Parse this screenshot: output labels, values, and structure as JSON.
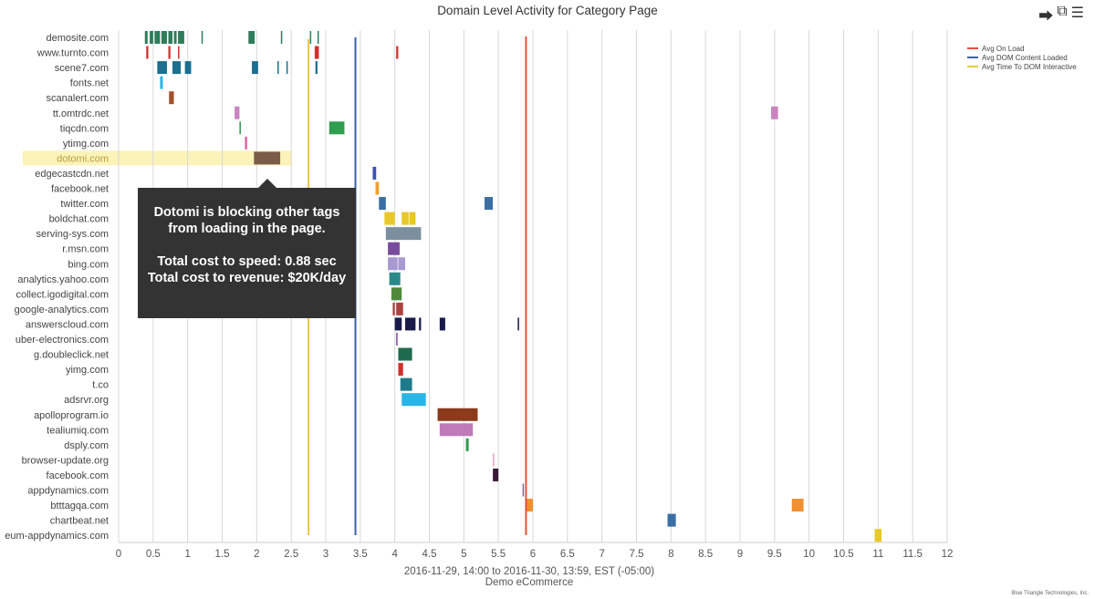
{
  "icons": [
    "share-icon",
    "external-link-icon",
    "menu-icon"
  ],
  "credit": "Blue Triangle Technologies, Inc.",
  "tooltip": {
    "message": "Dotomi is blocking other tags from loading in the page.",
    "speed": "Total cost to speed: 0.88 sec",
    "revenue": "Total cost to revenue: $20K/day"
  },
  "chart_data": {
    "type": "timeline",
    "title": "Domain Level Activity for Category Page",
    "xlabel": "2016-11-29, 14:00 to 2016-11-30, 13:59, EST (-05:00)",
    "xlabel2": "Demo eCommerce",
    "xlim": [
      0,
      12
    ],
    "xticks": [
      "0",
      "0.5",
      "1",
      "1.5",
      "2",
      "2.5",
      "3",
      "3.5",
      "4",
      "4.5",
      "5",
      "5.5",
      "6",
      "6.5",
      "7",
      "7.5",
      "8",
      "8.5",
      "9",
      "9.5",
      "10",
      "10.5",
      "11",
      "11.5",
      "12"
    ],
    "grid": true,
    "legend_position": "top-right",
    "highlight": "dotomi.com",
    "reference_lines": [
      {
        "name": "Avg On Load",
        "value": 5.9,
        "color": "#e0533a"
      },
      {
        "name": "Avg DOM Content Loaded",
        "value": 3.43,
        "color": "#3a5fb0"
      },
      {
        "name": "Avg Time To DOM Interactive",
        "value": 2.75,
        "color": "#e6c84a"
      }
    ],
    "domains": [
      {
        "name": "demosite.com",
        "color": "#2e7d5b",
        "segments": [
          [
            0.38,
            0.42
          ],
          [
            0.45,
            0.5
          ],
          [
            0.52,
            0.6
          ],
          [
            0.62,
            0.7
          ],
          [
            0.72,
            0.78
          ],
          [
            0.8,
            0.84
          ],
          [
            0.86,
            0.95
          ],
          [
            1.2,
            1.22
          ],
          [
            1.88,
            1.97
          ],
          [
            2.35,
            2.37
          ],
          [
            2.77,
            2.79
          ],
          [
            2.88,
            2.9
          ]
        ]
      },
      {
        "name": "www.turnto.com",
        "color": "#d32f2f",
        "segments": [
          [
            0.4,
            0.43
          ],
          [
            0.72,
            0.75
          ],
          [
            0.86,
            0.88
          ],
          [
            2.84,
            2.9
          ],
          [
            4.02,
            4.05
          ]
        ]
      },
      {
        "name": "scene7.com",
        "color": "#1b6f8f",
        "segments": [
          [
            0.56,
            0.7
          ],
          [
            0.78,
            0.9
          ],
          [
            0.96,
            1.05
          ],
          [
            1.93,
            2.02
          ],
          [
            2.3,
            2.32
          ],
          [
            2.43,
            2.45
          ],
          [
            2.85,
            2.88
          ]
        ]
      },
      {
        "name": "fonts.net",
        "color": "#29b6e6",
        "segments": [
          [
            0.6,
            0.64
          ]
        ]
      },
      {
        "name": "scanalert.com",
        "color": "#a0522d",
        "segments": [
          [
            0.73,
            0.8
          ]
        ]
      },
      {
        "name": "tt.omtrdc.net",
        "color": "#c984c0",
        "segments": [
          [
            1.68,
            1.75
          ],
          [
            9.45,
            9.55
          ]
        ]
      },
      {
        "name": "tiqcdn.com",
        "color": "#2e9e4f",
        "segments": [
          [
            1.75,
            1.77
          ],
          [
            3.05,
            3.27
          ]
        ]
      },
      {
        "name": "ytimg.com",
        "color": "#e0589a",
        "segments": [
          [
            1.83,
            1.86
          ]
        ]
      },
      {
        "name": "dotomi.com",
        "color": "#7a5c48",
        "segments": [
          [
            1.96,
            2.34
          ]
        ]
      },
      {
        "name": "edgecastcdn.net",
        "color": "#3f51b5",
        "segments": [
          [
            3.68,
            3.73
          ]
        ]
      },
      {
        "name": "facebook.net",
        "color": "#f0a030",
        "segments": [
          [
            3.72,
            3.77
          ]
        ]
      },
      {
        "name": "twitter.com",
        "color": "#3a6ea5",
        "segments": [
          [
            3.77,
            3.87
          ],
          [
            5.3,
            5.42
          ]
        ]
      },
      {
        "name": "boldchat.com",
        "color": "#e8c82a",
        "segments": [
          [
            3.85,
            4.0
          ],
          [
            4.1,
            4.2
          ],
          [
            4.21,
            4.3
          ]
        ]
      },
      {
        "name": "serving-sys.com",
        "color": "#7b8f9e",
        "segments": [
          [
            3.87,
            4.38
          ]
        ]
      },
      {
        "name": "r.msn.com",
        "color": "#7a4c9c",
        "segments": [
          [
            3.9,
            4.07
          ]
        ]
      },
      {
        "name": "bing.com",
        "color": "#a899d0",
        "segments": [
          [
            3.9,
            4.04
          ],
          [
            4.05,
            4.15
          ]
        ]
      },
      {
        "name": "analytics.yahoo.com",
        "color": "#2a8a8a",
        "segments": [
          [
            3.92,
            4.08
          ]
        ]
      },
      {
        "name": "collect.igodigital.com",
        "color": "#4e8a3a",
        "segments": [
          [
            3.95,
            4.1
          ]
        ]
      },
      {
        "name": "google-analytics.com",
        "color": "#b04040",
        "segments": [
          [
            3.97,
            4.0
          ],
          [
            4.02,
            4.12
          ]
        ]
      },
      {
        "name": "answerscloud.com",
        "color": "#1a1a4a",
        "segments": [
          [
            4.0,
            4.1
          ],
          [
            4.15,
            4.3
          ],
          [
            4.35,
            4.38
          ],
          [
            4.65,
            4.73
          ],
          [
            5.78,
            5.8
          ]
        ]
      },
      {
        "name": "uber-electronics.com",
        "color": "#7a4c9c",
        "segments": [
          [
            4.02,
            4.04
          ]
        ]
      },
      {
        "name": "g.doubleclick.net",
        "color": "#1f6b4e",
        "segments": [
          [
            4.05,
            4.25
          ]
        ]
      },
      {
        "name": "yimg.com",
        "color": "#d32f2f",
        "segments": [
          [
            4.05,
            4.12
          ]
        ]
      },
      {
        "name": "t.co",
        "color": "#1f7a8c",
        "segments": [
          [
            4.08,
            4.25
          ]
        ]
      },
      {
        "name": "adsrvr.org",
        "color": "#29b6e6",
        "segments": [
          [
            4.1,
            4.45
          ]
        ]
      },
      {
        "name": "apolloprogram.io",
        "color": "#8b3a1a",
        "segments": [
          [
            4.62,
            5.2
          ]
        ]
      },
      {
        "name": "tealiumiq.com",
        "color": "#c07ab8",
        "segments": [
          [
            4.65,
            5.13
          ]
        ]
      },
      {
        "name": "dsply.com",
        "color": "#2e9e4f",
        "segments": [
          [
            5.03,
            5.07
          ]
        ]
      },
      {
        "name": "browser-update.org",
        "color": "#e8a0c0",
        "segments": [
          [
            5.42,
            5.44
          ]
        ]
      },
      {
        "name": "facebook.com",
        "color": "#3a1a3a",
        "segments": [
          [
            5.42,
            5.5
          ]
        ]
      },
      {
        "name": "appdynamics.com",
        "color": "#7a6a9a",
        "segments": [
          [
            5.85,
            5.87
          ]
        ]
      },
      {
        "name": "btttagqa.com",
        "color": "#f09030",
        "segments": [
          [
            5.9,
            6.0
          ],
          [
            9.75,
            9.92
          ]
        ]
      },
      {
        "name": "chartbeat.net",
        "color": "#3a6ea5",
        "segments": [
          [
            7.95,
            8.07
          ]
        ]
      },
      {
        "name": "eum-appdynamics.com",
        "color": "#e8c82a",
        "segments": [
          [
            10.95,
            11.05
          ]
        ]
      }
    ]
  }
}
